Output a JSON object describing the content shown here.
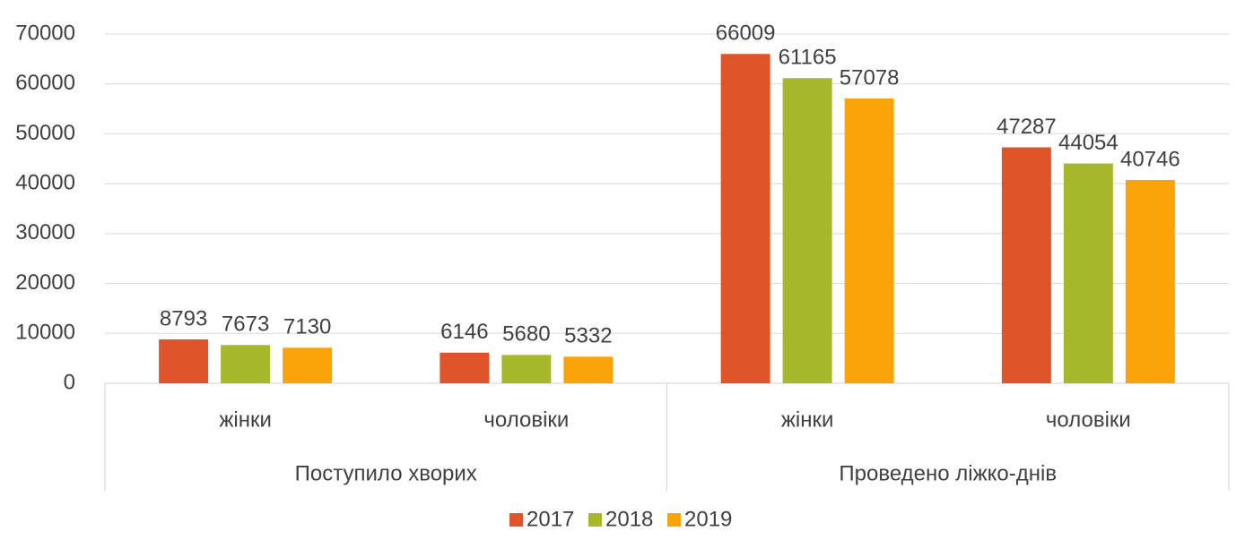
{
  "chart_data": {
    "type": "bar",
    "groups": [
      "Поступило хворих",
      "Проведено ліжко-днів"
    ],
    "categories": [
      "жінки",
      "чоловіки",
      "жінки",
      "чоловіки"
    ],
    "series": [
      {
        "name": "2017",
        "color": "#e0542a",
        "values": [
          8793,
          6146,
          66009,
          47287
        ]
      },
      {
        "name": "2018",
        "color": "#a8b82b",
        "values": [
          7673,
          5680,
          61165,
          44054
        ]
      },
      {
        "name": "2019",
        "color": "#fca30a",
        "values": [
          7130,
          5332,
          57078,
          40746
        ]
      }
    ],
    "ylim": [
      0,
      70000
    ],
    "yticks": [
      0,
      10000,
      20000,
      30000,
      40000,
      50000,
      60000,
      70000
    ],
    "grid": true,
    "legend": "bottom"
  }
}
